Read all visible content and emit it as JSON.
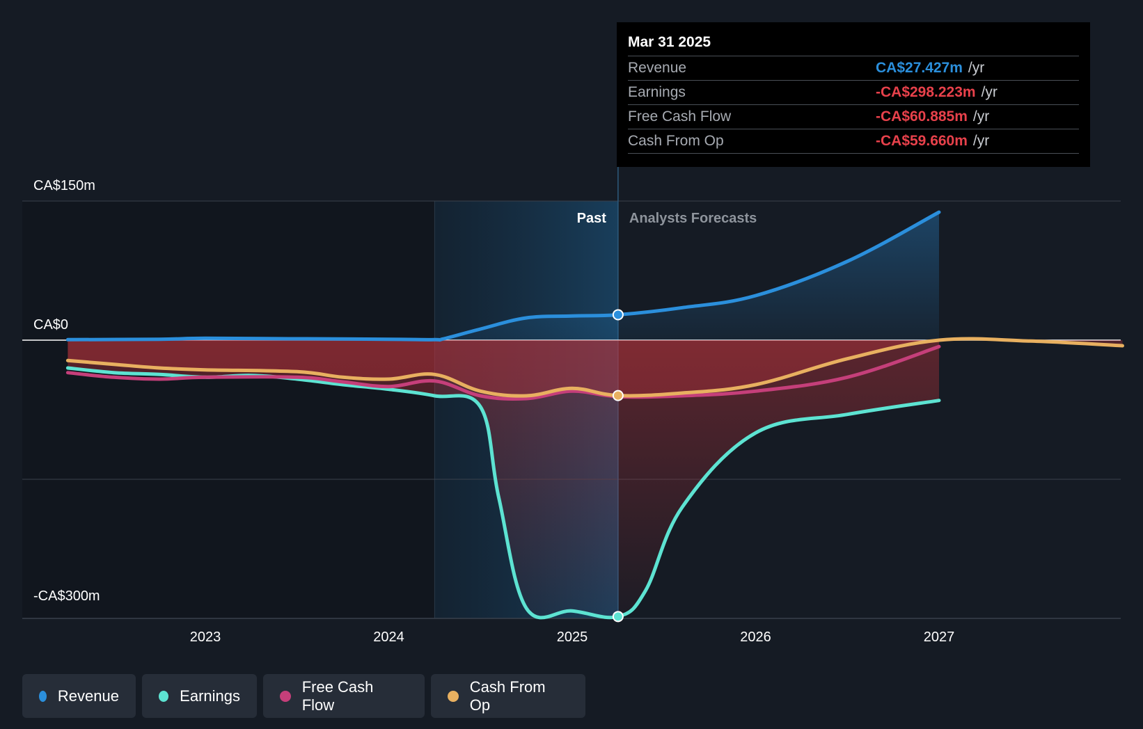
{
  "chart_data": {
    "type": "line",
    "y_axis": {
      "min": -300,
      "max": 150,
      "unit": "CA$m",
      "labels": [
        "CA$150m",
        "CA$0",
        "-CA$300m"
      ],
      "label_values": [
        150,
        0,
        -300
      ]
    },
    "x_axis": {
      "range": [
        2022.2,
        2028.0
      ],
      "ticks": [
        "2023",
        "2024",
        "2025",
        "2026",
        "2027"
      ],
      "tick_values": [
        2023,
        2024,
        2025,
        2026,
        2027
      ]
    },
    "past_label": "Past",
    "forecast_label": "Analysts Forecasts",
    "past_shaded_start": 2024.25,
    "divider_x": 2025.25,
    "grid": true,
    "series": [
      {
        "name": "Revenue",
        "color": "#2b8fdc",
        "x": [
          2022.25,
          2022.75,
          2023.0,
          2023.5,
          2024.0,
          2024.25,
          2024.3,
          2024.5,
          2024.75,
          2025.0,
          2025.25,
          2025.6,
          2026.0,
          2026.5,
          2027.0
        ],
        "y": [
          0.5,
          1,
          2,
          1.5,
          1,
          0.5,
          1.5,
          12,
          24,
          26,
          27.4,
          35,
          48,
          85,
          138
        ]
      },
      {
        "name": "Earnings",
        "color": "#5de3d2",
        "x": [
          2022.25,
          2022.5,
          2022.75,
          2023.0,
          2023.25,
          2023.5,
          2023.75,
          2024.0,
          2024.25,
          2024.5,
          2024.6,
          2024.75,
          2025.0,
          2025.25,
          2025.4,
          2025.6,
          2026.0,
          2026.5,
          2027.0
        ],
        "y": [
          -30,
          -35,
          -37,
          -40,
          -38,
          -42,
          -48,
          -53,
          -60,
          -72,
          -170,
          -289,
          -292,
          -298,
          -270,
          -180,
          -100,
          -80,
          -65
        ]
      },
      {
        "name": "Free Cash Flow",
        "color": "#c53f7a",
        "x": [
          2022.25,
          2022.5,
          2022.75,
          2023.0,
          2023.5,
          2023.75,
          2024.0,
          2024.25,
          2024.5,
          2024.75,
          2025.0,
          2025.25,
          2025.6,
          2026.0,
          2026.5,
          2027.0
        ],
        "y": [
          -35,
          -40,
          -42,
          -40,
          -40,
          -45,
          -50,
          -44,
          -60,
          -63,
          -55,
          -60.9,
          -60,
          -55,
          -40,
          -7
        ]
      },
      {
        "name": "Cash From Op",
        "color": "#e8b060",
        "x": [
          2022.25,
          2022.5,
          2022.75,
          2023.0,
          2023.5,
          2023.75,
          2024.0,
          2024.25,
          2024.5,
          2024.75,
          2025.0,
          2025.25,
          2025.6,
          2026.0,
          2026.5,
          2027.0,
          2027.5,
          2028.0
        ],
        "y": [
          -22,
          -26,
          -30,
          -32,
          -34,
          -40,
          -42,
          -37,
          -55,
          -60,
          -52,
          -59.7,
          -57,
          -48,
          -20,
          0,
          -1,
          -6
        ]
      }
    ]
  },
  "tooltip": {
    "date": "Mar 31 2025",
    "rows": [
      {
        "label": "Revenue",
        "value": "CA$27.427m",
        "unit": "/yr",
        "color": "#2b8fdc"
      },
      {
        "label": "Earnings",
        "value": "-CA$298.223m",
        "unit": "/yr",
        "color": "#e8414b"
      },
      {
        "label": "Free Cash Flow",
        "value": "-CA$60.885m",
        "unit": "/yr",
        "color": "#e8414b"
      },
      {
        "label": "Cash From Op",
        "value": "-CA$59.660m",
        "unit": "/yr",
        "color": "#e8414b"
      }
    ]
  },
  "legend": [
    {
      "label": "Revenue",
      "color": "#2b8fdc"
    },
    {
      "label": "Earnings",
      "color": "#5de3d2"
    },
    {
      "label": "Free Cash Flow",
      "color": "#c53f7a"
    },
    {
      "label": "Cash From Op",
      "color": "#e8b060"
    }
  ]
}
